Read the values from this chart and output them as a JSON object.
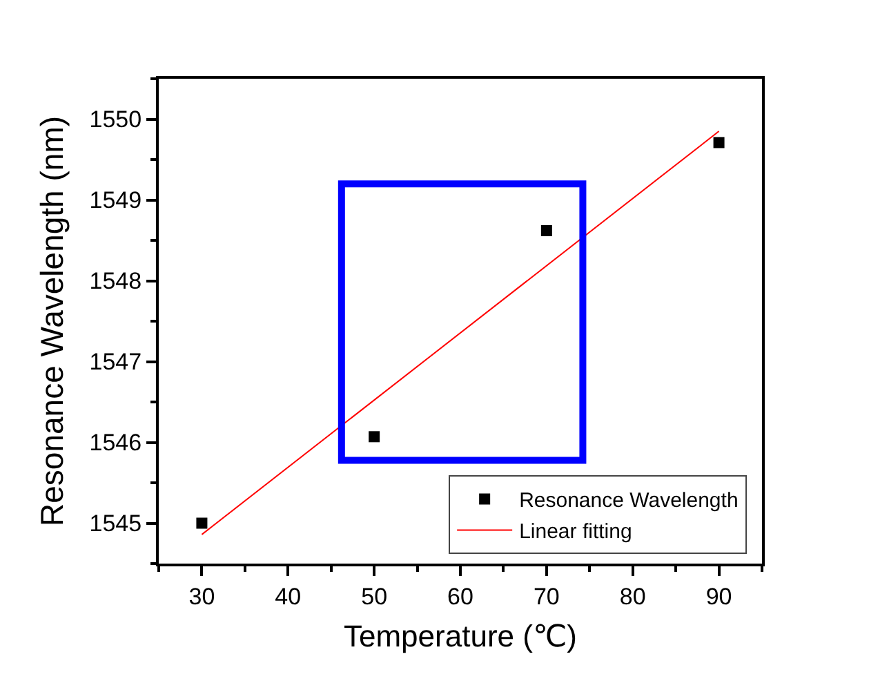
{
  "chart_data": {
    "type": "scatter",
    "xlabel": "Temperature (℃)",
    "ylabel": "Resonance Wavelength (nm)",
    "xlim": [
      25,
      95
    ],
    "ylim": [
      1544.5,
      1550.5
    ],
    "xticks": [
      {
        "value": 25,
        "label": null
      },
      30,
      {
        "value": 35,
        "label": null
      },
      40,
      {
        "value": 45,
        "label": null
      },
      50,
      {
        "value": 55,
        "label": null
      },
      60,
      {
        "value": 65,
        "label": null
      },
      70,
      {
        "value": 75,
        "label": null
      },
      80,
      {
        "value": 85,
        "label": null
      },
      90,
      {
        "value": 95,
        "label": null
      }
    ],
    "yticks": [
      {
        "value": 1544.5,
        "label": null
      },
      1545,
      {
        "value": 1545.5,
        "label": null
      },
      1546,
      {
        "value": 1546.5,
        "label": null
      },
      1547,
      {
        "value": 1547.5,
        "label": null
      },
      1548,
      {
        "value": 1548.5,
        "label": null
      },
      1549,
      {
        "value": 1549.5,
        "label": null
      },
      1550,
      {
        "value": 1550.5,
        "label": null
      }
    ],
    "x": [
      30,
      50,
      70,
      90
    ],
    "series": [
      {
        "name": "Resonance Wavelength",
        "color": "#000000",
        "values": [
          1545.0,
          1546.07,
          1548.62,
          1549.71
        ]
      },
      {
        "name": "Linear fitting",
        "type": "line",
        "marker": "none",
        "color": "#ff0000",
        "x": [
          30,
          90
        ],
        "values": [
          1544.86,
          1549.85
        ]
      }
    ],
    "marker": "square",
    "line_style": "solid",
    "legend": "bottom right"
  }
}
